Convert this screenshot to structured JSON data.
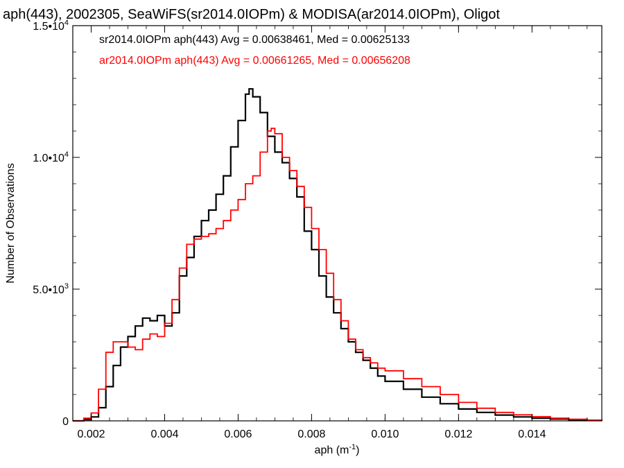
{
  "chart_data": {
    "type": "line",
    "title": "aph(443), 2002305, SeaWiFS(sr2014.0IOPm) & MODISA(ar2014.0IOPm), Oligot",
    "xlabel": "aph (m",
    "xlabel_sup": "-1",
    "xlabel_tail": ")",
    "ylabel": "Number of Observations",
    "xlim": [
      0.0015,
      0.0159
    ],
    "ylim": [
      0,
      15000
    ],
    "x_ticks": [
      {
        "value": 0.002,
        "label": "0.002"
      },
      {
        "value": 0.004,
        "label": "0.004"
      },
      {
        "value": 0.006,
        "label": "0.006"
      },
      {
        "value": 0.008,
        "label": "0.008"
      },
      {
        "value": 0.01,
        "label": "0.010"
      },
      {
        "value": 0.012,
        "label": "0.012"
      },
      {
        "value": 0.014,
        "label": "0.014"
      }
    ],
    "y_ticks": [
      {
        "value": 0,
        "label": "0",
        "sup": ""
      },
      {
        "value": 5000,
        "label": "5.0•10",
        "sup": "3"
      },
      {
        "value": 10000,
        "label": "1.0•10",
        "sup": "4"
      },
      {
        "value": 15000,
        "label": "1.5•10",
        "sup": "4"
      }
    ],
    "annotations": [
      {
        "text": "sr2014.0IOPm aph(443) Avg = 0.00638461, Med = 0.00625133",
        "color": "#000000"
      },
      {
        "text": "ar2014.0IOPm aph(443) Avg = 0.00661265, Med = 0.00656208",
        "color": "#ff0000"
      }
    ],
    "series": [
      {
        "color": "#000000",
        "x": [
          0.0015,
          0.0018,
          0.002,
          0.0022,
          0.0024,
          0.0026,
          0.0028,
          0.003,
          0.0032,
          0.0034,
          0.0036,
          0.0038,
          0.004,
          0.0042,
          0.0044,
          0.0046,
          0.0048,
          0.005,
          0.0052,
          0.0054,
          0.0056,
          0.0058,
          0.006,
          0.0062,
          0.0063,
          0.0064,
          0.0066,
          0.0068,
          0.007,
          0.0072,
          0.0074,
          0.0076,
          0.0078,
          0.008,
          0.0082,
          0.0084,
          0.0086,
          0.0088,
          0.009,
          0.0092,
          0.0094,
          0.0096,
          0.0098,
          0.01,
          0.0105,
          0.011,
          0.0115,
          0.012,
          0.0125,
          0.013,
          0.0135,
          0.014,
          0.0145,
          0.015,
          0.0155,
          0.0159
        ],
        "y": [
          0,
          50,
          150,
          500,
          1300,
          2100,
          2800,
          3200,
          3600,
          3900,
          3800,
          4000,
          3600,
          4100,
          5500,
          6200,
          7000,
          7600,
          8000,
          8600,
          9300,
          10400,
          11400,
          12400,
          12600,
          12300,
          11700,
          10800,
          10200,
          9800,
          9200,
          8500,
          7200,
          6500,
          5500,
          4700,
          4100,
          3500,
          3000,
          2600,
          2300,
          2000,
          1700,
          1500,
          1200,
          900,
          650,
          450,
          320,
          220,
          150,
          100,
          70,
          40,
          20,
          10
        ]
      },
      {
        "color": "#ff0000",
        "x": [
          0.0015,
          0.0018,
          0.002,
          0.0022,
          0.0024,
          0.0026,
          0.0028,
          0.003,
          0.0032,
          0.0034,
          0.0036,
          0.0038,
          0.004,
          0.0042,
          0.0044,
          0.0046,
          0.0048,
          0.005,
          0.0052,
          0.0054,
          0.0056,
          0.0058,
          0.006,
          0.0062,
          0.0064,
          0.0066,
          0.0068,
          0.0069,
          0.007,
          0.0072,
          0.0074,
          0.0076,
          0.0078,
          0.008,
          0.0082,
          0.0084,
          0.0086,
          0.0088,
          0.009,
          0.0092,
          0.0094,
          0.0096,
          0.0098,
          0.01,
          0.0105,
          0.011,
          0.0115,
          0.012,
          0.0125,
          0.013,
          0.0135,
          0.014,
          0.0145,
          0.015,
          0.0155,
          0.0159
        ],
        "y": [
          0,
          100,
          300,
          1200,
          2600,
          3000,
          3000,
          2800,
          2700,
          3100,
          3300,
          3200,
          3700,
          4600,
          5800,
          6700,
          6900,
          7000,
          7100,
          7300,
          7600,
          8000,
          8400,
          9000,
          9300,
          10200,
          11000,
          11100,
          10900,
          10000,
          9500,
          8900,
          8100,
          7300,
          6500,
          5600,
          4600,
          3800,
          3100,
          2700,
          2400,
          2200,
          2000,
          1900,
          1600,
          1300,
          1000,
          700,
          480,
          320,
          230,
          160,
          100,
          60,
          30,
          15
        ]
      }
    ]
  }
}
